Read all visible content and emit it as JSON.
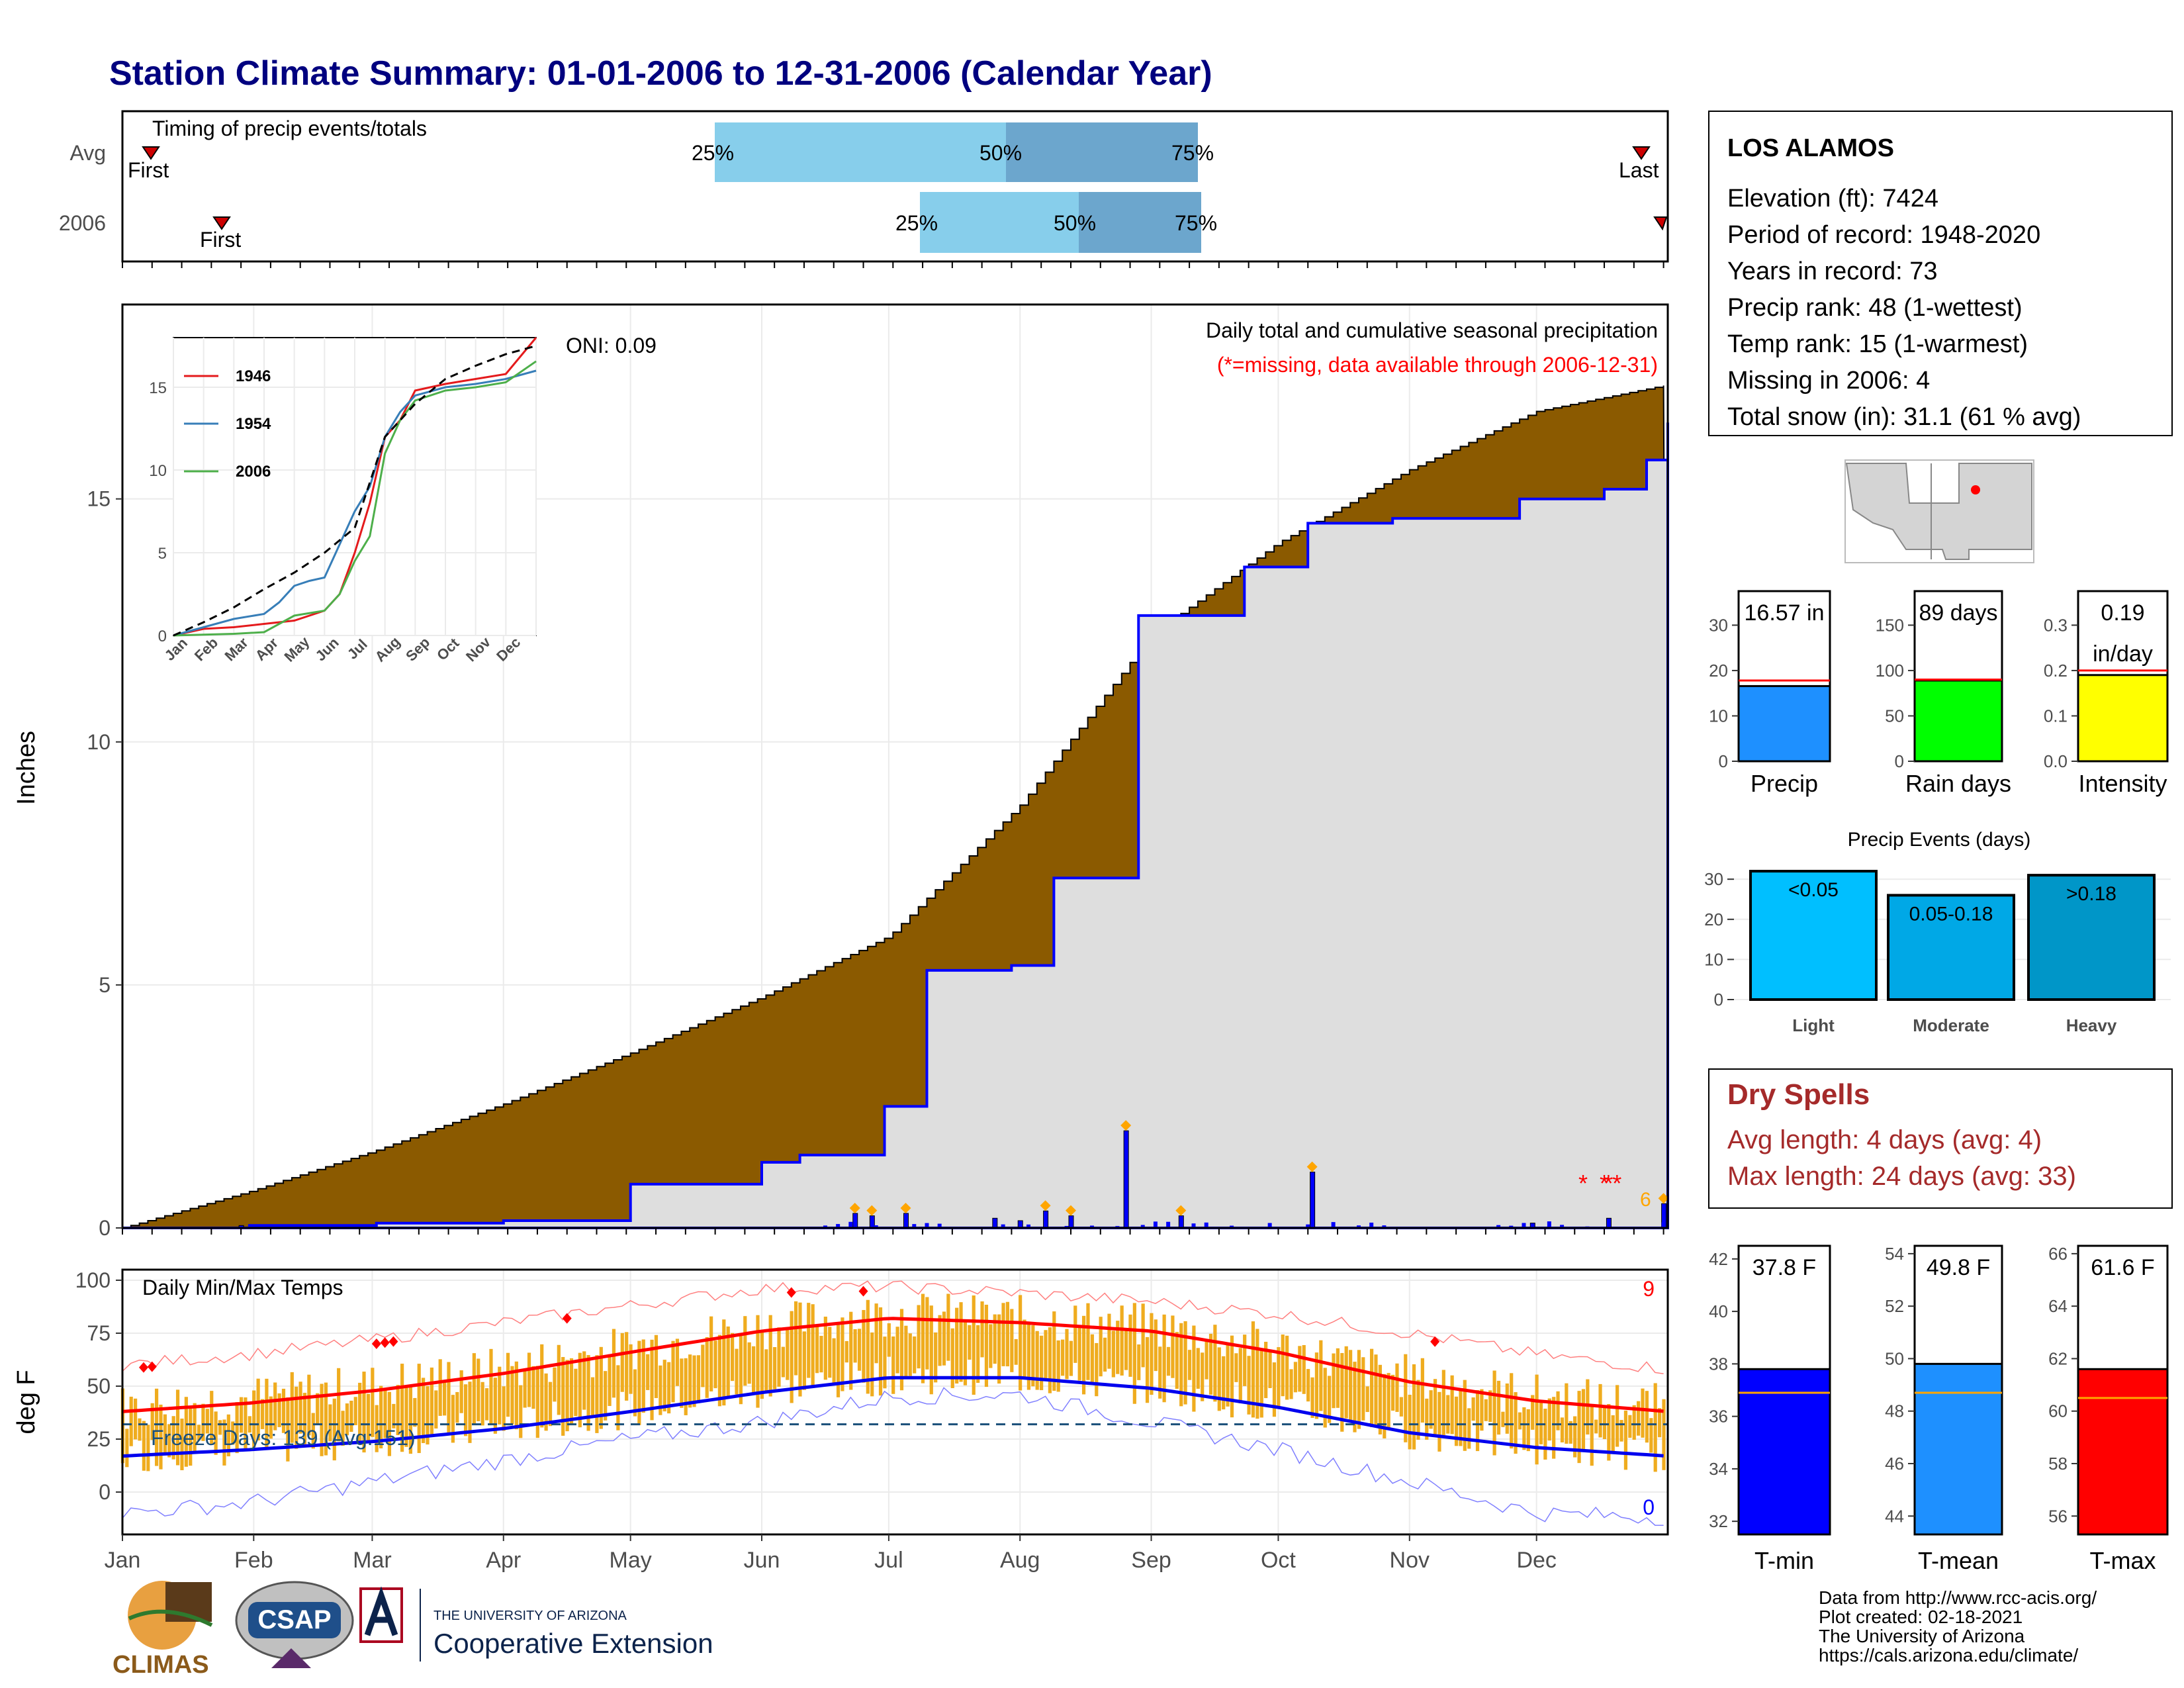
{
  "title": "Station Climate Summary: 01-01-2006 to 12-31-2006 (Calendar Year)",
  "colors": {
    "title": "#00007f",
    "cum_avg_fill": "#8b5a00",
    "cum_obs_fill": "#dedede",
    "daily_bar": "#0000ff",
    "quartile_light": "#87ceeb",
    "quartile_dark": "#6ca6cd",
    "temp_bar": "#efac1f",
    "tmax_line": "#ff0000",
    "tmin_line": "#0000ee",
    "freeze_line": "#1a4f7a",
    "missing": "#ff0000",
    "record": "#ff0000",
    "big_event": "#ffa500",
    "dry_spells": "#a52a2a"
  },
  "timing_panel": {
    "label": "Timing of precip events/totals",
    "rows": [
      "Avg",
      "2006"
    ],
    "first_label": "First",
    "last_label": "Last",
    "pct_labels": [
      "25%",
      "50%",
      "75%"
    ]
  },
  "precip_panel": {
    "ylabel": "Inches",
    "header1": "Daily total and cumulative seasonal precipitation",
    "header2": "(*=missing, data available through 2006-12-31)",
    "oni": "ONI: 0.09",
    "count_label": "6",
    "yticks": [
      "0",
      "5",
      "10",
      "15"
    ]
  },
  "inset": {
    "yticks": [
      "0",
      "5",
      "10",
      "15"
    ],
    "months": [
      "Jan",
      "Feb",
      "Mar",
      "Apr",
      "May",
      "Jun",
      "Jul",
      "Aug",
      "Sep",
      "Oct",
      "Nov",
      "Dec"
    ],
    "legend": [
      "1946",
      "1954",
      "2006"
    ],
    "legend_colors": [
      "#e41a1c",
      "#377eb8",
      "#4daf4a"
    ]
  },
  "temp_panel": {
    "ylabel": "deg F",
    "label": "Daily Min/Max Temps",
    "freeze": "Freeze Days: 139 (Avg:151)",
    "count_hi": "9",
    "count_lo": "0",
    "yticks": [
      "0",
      "25",
      "50",
      "75",
      "100"
    ]
  },
  "months": [
    "Jan",
    "Feb",
    "Mar",
    "Apr",
    "May",
    "Jun",
    "Jul",
    "Aug",
    "Sep",
    "Oct",
    "Nov",
    "Dec"
  ],
  "station": {
    "name": "LOS ALAMOS",
    "lines": [
      "Elevation (ft): 7424",
      "Period of record: 1948-2020",
      "Years in record: 73",
      "Precip rank: 48 (1-wettest)",
      "Temp rank: 15 (1-warmest)",
      "Missing in 2006: 4",
      "Total snow (in): 31.1 (61 % avg)"
    ]
  },
  "precip_stats": [
    {
      "label": "Precip",
      "value_text": "16.57 in",
      "ticks": [
        "0",
        "10",
        "20",
        "30"
      ],
      "color": "#1e90ff"
    },
    {
      "label": "Rain days",
      "value_text": "89 days",
      "ticks": [
        "0",
        "50",
        "100",
        "150"
      ],
      "color": "#00ff00"
    },
    {
      "label": "Intensity",
      "value_text": "0.19 in/day",
      "ticks": [
        "0.0",
        "0.1",
        "0.2",
        "0.3"
      ],
      "color": "#ffff00"
    }
  ],
  "events": {
    "title": "Precip Events (days)",
    "ticks": [
      "0",
      "10",
      "20",
      "30"
    ],
    "bars": [
      {
        "label": "Light",
        "text": "<0.05",
        "color": "#00bfff"
      },
      {
        "label": "Moderate",
        "text": "0.05-0.18",
        "color": "#00a8e6"
      },
      {
        "label": "Heavy",
        "text": ">0.18",
        "color": "#0096c8"
      }
    ]
  },
  "dry_spells": {
    "title": "Dry Spells",
    "avg": "Avg length: 4 days (avg: 4)",
    "max": "Max length: 24 days (avg: 33)"
  },
  "temp_stats": [
    {
      "label": "T-min",
      "value_text": "37.8 F",
      "ticks": [
        "32",
        "34",
        "36",
        "38",
        "40",
        "42"
      ],
      "color": "#0000ff"
    },
    {
      "label": "T-mean",
      "value_text": "49.8 F",
      "ticks": [
        "44",
        "46",
        "48",
        "50",
        "52",
        "54"
      ],
      "color": "#1e90ff"
    },
    {
      "label": "T-max",
      "value_text": "61.6 F",
      "ticks": [
        "56",
        "58",
        "60",
        "62",
        "64",
        "66"
      ],
      "color": "#ff0000"
    }
  ],
  "footer": [
    "Data from http://www.rcc-acis.org/",
    "Plot created: 02-18-2021",
    "The University of Arizona",
    "https://cals.arizona.edu/climate/"
  ],
  "logos": {
    "climas": "CLIMAS",
    "csap": "CSAP",
    "ua_top": "THE UNIVERSITY OF ARIZONA",
    "ua_bottom": "Cooperative Extension"
  },
  "chart_data": {
    "type": "area",
    "title": "Station Climate Summary: 01-01-2006 to 12-31-2006 (Calendar Year)",
    "ylabel": "Inches",
    "ylim": [
      0,
      19
    ],
    "cumulative_avg": {
      "doy": [
        0,
        30,
        60,
        90,
        120,
        151,
        181,
        212,
        243,
        273,
        304,
        334,
        365
      ],
      "inches": [
        0,
        0.75,
        1.6,
        2.55,
        3.6,
        4.75,
        6.0,
        8.7,
        12.2,
        14.1,
        15.6,
        16.8,
        17.35
      ]
    },
    "cumulative_2006": {
      "doy": [
        0,
        30,
        60,
        90,
        120,
        151,
        160,
        180,
        190,
        210,
        220,
        240,
        265,
        280,
        300,
        330,
        350,
        360,
        365
      ],
      "inches": [
        0,
        0.05,
        0.1,
        0.15,
        0.9,
        1.35,
        1.5,
        2.5,
        5.3,
        5.4,
        7.2,
        12.6,
        13.6,
        14.5,
        14.6,
        15.0,
        15.2,
        15.8,
        16.57
      ]
    },
    "daily_2006": {
      "doy": [
        28,
        173,
        177,
        185,
        206,
        212,
        218,
        224,
        237,
        250,
        281,
        333,
        351,
        364
      ],
      "inches": [
        0.05,
        0.3,
        0.25,
        0.3,
        0.2,
        0.15,
        0.35,
        0.25,
        2.0,
        0.25,
        1.15,
        0.1,
        0.2,
        0.5
      ]
    },
    "missing_doy": [
      345,
      350,
      351,
      353
    ],
    "inset": {
      "series": [
        {
          "name": "1946",
          "months": [
            0,
            1,
            2,
            3,
            4,
            5,
            5.5,
            6,
            6.5,
            7,
            7.5,
            8,
            9,
            10,
            11,
            12
          ],
          "values": [
            0,
            0.4,
            0.5,
            0.7,
            0.9,
            1.5,
            2.5,
            5,
            8,
            12,
            13,
            14.8,
            15.2,
            15.5,
            15.8,
            18
          ]
        },
        {
          "name": "1954",
          "months": [
            0,
            1,
            2,
            3,
            3.5,
            4,
            4.5,
            5,
            6,
            6.5,
            7,
            7.5,
            8,
            9,
            10,
            11,
            12
          ],
          "values": [
            0,
            0.5,
            1,
            1.3,
            2,
            3,
            3.3,
            3.5,
            7.5,
            9,
            12,
            13.5,
            14.5,
            15,
            15.2,
            15.5,
            16
          ]
        },
        {
          "name": "2006",
          "months": [
            0,
            1,
            2,
            3,
            4,
            5,
            5.5,
            6,
            6.5,
            7,
            7.5,
            8,
            9,
            10,
            11,
            12
          ],
          "values": [
            0,
            0.05,
            0.1,
            0.2,
            1.2,
            1.5,
            2.5,
            4.5,
            6,
            11,
            13,
            14.2,
            14.8,
            15,
            15.3,
            16.57
          ]
        },
        {
          "name": "avg",
          "months": [
            0,
            1,
            2,
            3,
            4,
            5,
            6,
            7,
            8,
            9,
            10,
            11,
            12
          ],
          "values": [
            0,
            0.8,
            1.7,
            2.8,
            3.8,
            5,
            6.5,
            12,
            14,
            15.5,
            16.3,
            17,
            17.5
          ]
        }
      ]
    },
    "temps": {
      "ylim": [
        -20,
        105
      ],
      "normal_max": {
        "doy": [
          0,
          30,
          60,
          90,
          120,
          151,
          181,
          212,
          243,
          273,
          304,
          334,
          365
        ],
        "values": [
          38,
          42,
          48,
          56,
          66,
          76,
          82,
          80,
          76,
          66,
          52,
          43,
          38
        ]
      },
      "normal_min": {
        "doy": [
          0,
          30,
          60,
          90,
          120,
          151,
          181,
          212,
          243,
          273,
          304,
          334,
          365
        ],
        "values": [
          17,
          20,
          24,
          30,
          38,
          47,
          54,
          54,
          49,
          40,
          28,
          21,
          17
        ]
      },
      "record_max": {
        "doy": [
          0,
          30,
          60,
          90,
          120,
          151,
          181,
          212,
          243,
          273,
          304,
          334,
          365
        ],
        "values": [
          60,
          65,
          72,
          80,
          88,
          96,
          97,
          94,
          90,
          84,
          75,
          65,
          58
        ]
      },
      "record_min": {
        "doy": [
          0,
          30,
          60,
          90,
          120,
          151,
          181,
          212,
          243,
          273,
          304,
          334,
          365
        ],
        "values": [
          -10,
          -5,
          5,
          15,
          25,
          33,
          45,
          46,
          33,
          20,
          5,
          -10,
          -12
        ]
      },
      "freeze_line": 32,
      "new_highs_doy": [
        5,
        7,
        60,
        62,
        64,
        105,
        158,
        175,
        310
      ]
    },
    "stats": {
      "precip_in": [
        16.57,
        17.8
      ],
      "rain_days": [
        89,
        90
      ],
      "intensity": [
        0.19,
        0.2
      ],
      "events": [
        32,
        26,
        31
      ],
      "tmin": [
        37.8,
        36.9
      ],
      "tmean": [
        49.8,
        48.7
      ],
      "tmax": [
        61.6,
        60.5
      ]
    }
  }
}
